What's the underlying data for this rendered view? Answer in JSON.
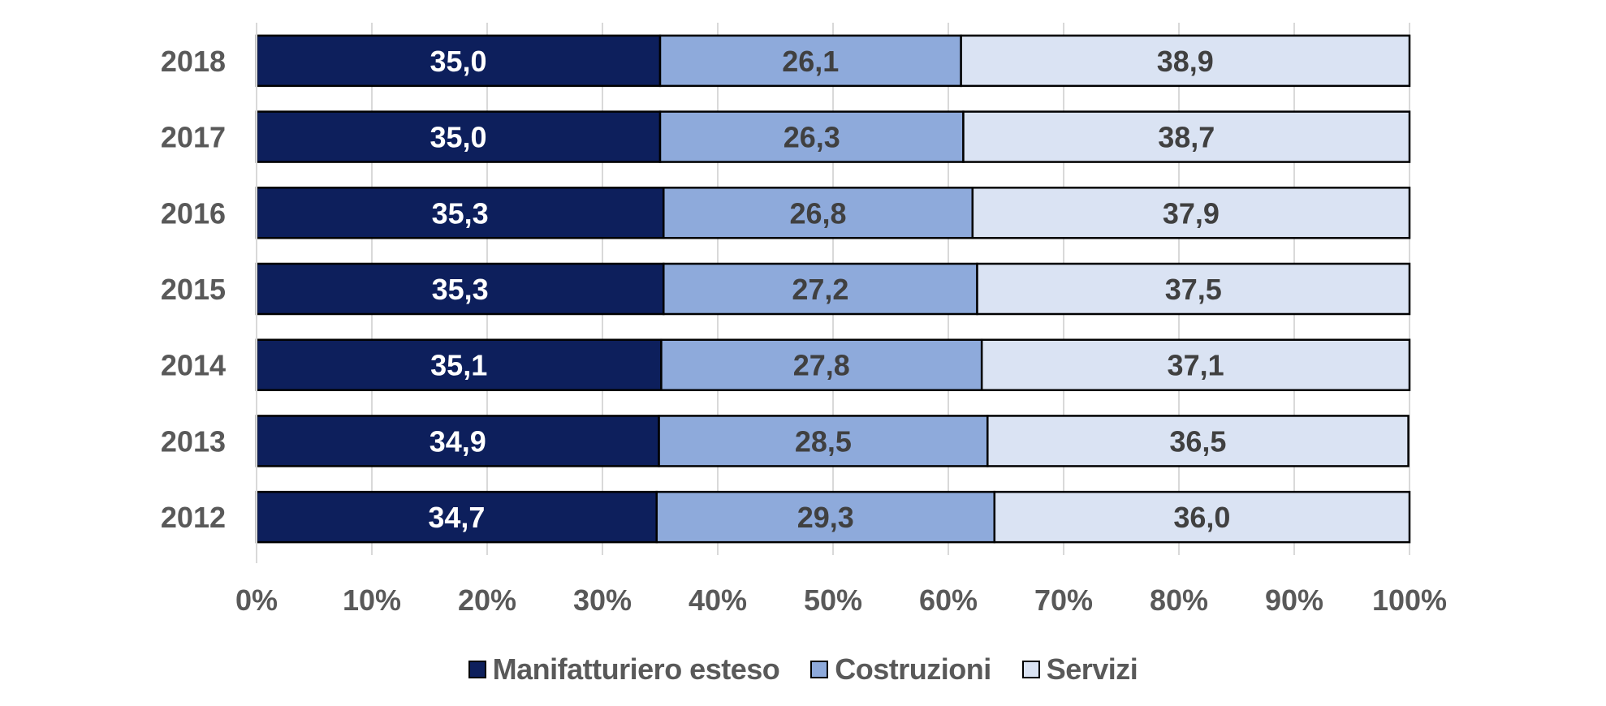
{
  "chart_data": {
    "type": "bar",
    "orientation": "horizontal",
    "stacked": true,
    "normalized": true,
    "categories": [
      "2018",
      "2017",
      "2016",
      "2015",
      "2014",
      "2013",
      "2012"
    ],
    "series": [
      {
        "name": "Manifatturiero esteso",
        "color": "#0d1f5c",
        "label_color": "#ffffff",
        "values": [
          35.0,
          35.0,
          35.3,
          35.3,
          35.1,
          34.9,
          34.7
        ],
        "labels": [
          "35,0",
          "35,0",
          "35,3",
          "35,3",
          "35,1",
          "34,9",
          "34,7"
        ]
      },
      {
        "name": "Costruzioni",
        "color": "#8eaadb",
        "label_color": "#404040",
        "values": [
          26.1,
          26.3,
          26.8,
          27.2,
          27.8,
          28.5,
          29.3
        ],
        "labels": [
          "26,1",
          "26,3",
          "26,8",
          "27,2",
          "27,8",
          "28,5",
          "29,3"
        ]
      },
      {
        "name": "Servizi",
        "color": "#dae3f3",
        "label_color": "#404040",
        "values": [
          38.9,
          38.7,
          37.9,
          37.5,
          37.1,
          36.5,
          36.0
        ],
        "labels": [
          "38,9",
          "38,7",
          "37,9",
          "37,5",
          "37,1",
          "36,5",
          "36,0"
        ]
      }
    ],
    "xlim": [
      0,
      100
    ],
    "x_ticks": [
      "0%",
      "10%",
      "20%",
      "30%",
      "40%",
      "50%",
      "60%",
      "70%",
      "80%",
      "90%",
      "100%"
    ],
    "grid": true,
    "legend_position": "bottom",
    "title": "",
    "xlabel": "",
    "ylabel": ""
  }
}
